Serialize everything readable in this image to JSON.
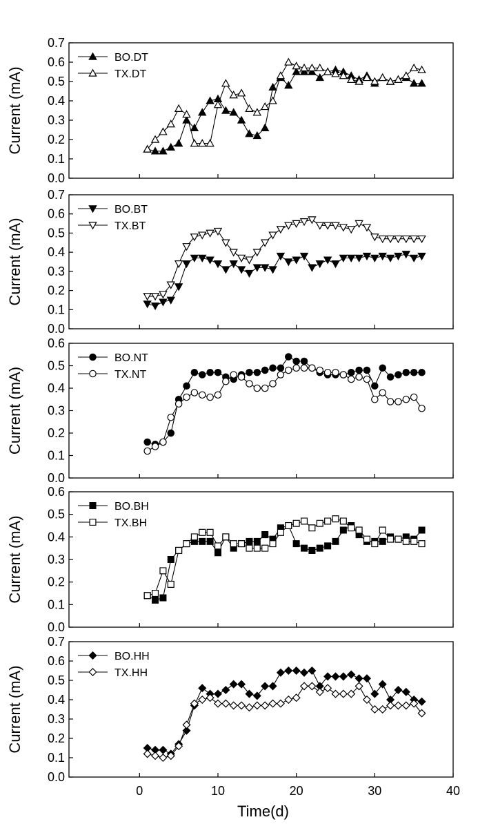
{
  "chart_data": [
    {
      "type": "line",
      "ylabel": "Current (mA)",
      "xlabel": "",
      "xlim": [
        -9,
        40
      ],
      "ylim": [
        0,
        0.7
      ],
      "yticks": [
        0.0,
        0.1,
        0.2,
        0.3,
        0.4,
        0.5,
        0.6,
        0.7
      ],
      "ytick_labels": [
        "0.0",
        "0.1",
        "0.2",
        "0.3",
        "0.4",
        "0.5",
        "0.6",
        "0.7"
      ],
      "legend_position": "top-left",
      "series": [
        {
          "name": "BO.DT",
          "marker": "triangle-up",
          "fill": "filled",
          "x": [
            1,
            2,
            3,
            4,
            5,
            6,
            7,
            8,
            9,
            10,
            11,
            12,
            13,
            14,
            15,
            16,
            17,
            18,
            19,
            20,
            21,
            22,
            23,
            24,
            25,
            26,
            27,
            28,
            29,
            30,
            31,
            32,
            33,
            34,
            35,
            36
          ],
          "y": [
            0.15,
            0.14,
            0.14,
            0.16,
            0.18,
            0.3,
            0.26,
            0.34,
            0.4,
            0.41,
            0.35,
            0.34,
            0.3,
            0.23,
            0.22,
            0.26,
            0.47,
            0.52,
            0.48,
            0.55,
            0.55,
            0.55,
            0.52,
            0.55,
            0.56,
            0.55,
            0.53,
            0.51,
            0.53,
            0.49,
            0.52,
            0.5,
            0.51,
            0.52,
            0.49,
            0.49
          ]
        },
        {
          "name": "TX.DT",
          "marker": "triangle-up",
          "fill": "open",
          "x": [
            1,
            2,
            3,
            4,
            5,
            6,
            7,
            8,
            9,
            10,
            11,
            12,
            13,
            14,
            15,
            16,
            17,
            18,
            19,
            20,
            21,
            22,
            23,
            24,
            25,
            26,
            27,
            28,
            29,
            30,
            31,
            32,
            33,
            34,
            35,
            36
          ],
          "y": [
            0.15,
            0.2,
            0.24,
            0.28,
            0.36,
            0.33,
            0.18,
            0.18,
            0.18,
            0.38,
            0.49,
            0.43,
            0.44,
            0.36,
            0.34,
            0.37,
            0.4,
            0.53,
            0.6,
            0.58,
            0.57,
            0.57,
            0.57,
            0.55,
            0.54,
            0.53,
            0.51,
            0.5,
            0.52,
            0.5,
            0.52,
            0.5,
            0.51,
            0.53,
            0.57,
            0.56
          ]
        }
      ]
    },
    {
      "type": "line",
      "ylabel": "Current (mA)",
      "xlabel": "",
      "xlim": [
        -9,
        40
      ],
      "ylim": [
        0,
        0.7
      ],
      "yticks": [
        0.0,
        0.1,
        0.2,
        0.3,
        0.4,
        0.5,
        0.6,
        0.7
      ],
      "ytick_labels": [
        "0.0",
        "0.1",
        "0.2",
        "0.3",
        "0.4",
        "0.5",
        "0.6",
        "0.7"
      ],
      "legend_position": "top-left",
      "series": [
        {
          "name": "BO.BT",
          "marker": "triangle-down",
          "fill": "filled",
          "x": [
            1,
            2,
            3,
            4,
            5,
            6,
            7,
            8,
            9,
            10,
            11,
            12,
            13,
            14,
            15,
            16,
            17,
            18,
            19,
            20,
            21,
            22,
            23,
            24,
            25,
            26,
            27,
            28,
            29,
            30,
            31,
            32,
            33,
            34,
            35,
            36
          ],
          "y": [
            0.13,
            0.12,
            0.14,
            0.15,
            0.22,
            0.34,
            0.37,
            0.37,
            0.36,
            0.34,
            0.31,
            0.34,
            0.31,
            0.29,
            0.32,
            0.32,
            0.31,
            0.38,
            0.35,
            0.36,
            0.38,
            0.32,
            0.34,
            0.36,
            0.34,
            0.37,
            0.37,
            0.37,
            0.38,
            0.37,
            0.38,
            0.37,
            0.38,
            0.39,
            0.37,
            0.38
          ]
        },
        {
          "name": "TX.BT",
          "marker": "triangle-down",
          "fill": "open",
          "x": [
            1,
            2,
            3,
            4,
            5,
            6,
            7,
            8,
            9,
            10,
            11,
            12,
            13,
            14,
            15,
            16,
            17,
            18,
            19,
            20,
            21,
            22,
            23,
            24,
            25,
            26,
            27,
            28,
            29,
            30,
            31,
            32,
            33,
            34,
            35,
            36
          ],
          "y": [
            0.17,
            0.17,
            0.18,
            0.23,
            0.34,
            0.43,
            0.48,
            0.49,
            0.5,
            0.51,
            0.45,
            0.4,
            0.37,
            0.36,
            0.4,
            0.45,
            0.49,
            0.52,
            0.54,
            0.55,
            0.56,
            0.57,
            0.54,
            0.54,
            0.54,
            0.53,
            0.52,
            0.55,
            0.53,
            0.48,
            0.47,
            0.47,
            0.47,
            0.47,
            0.47,
            0.47
          ]
        }
      ]
    },
    {
      "type": "line",
      "ylabel": "Current (mA)",
      "xlabel": "",
      "xlim": [
        -9,
        40
      ],
      "ylim": [
        0,
        0.6
      ],
      "yticks": [
        0.0,
        0.1,
        0.2,
        0.3,
        0.4,
        0.5,
        0.6
      ],
      "ytick_labels": [
        "0.0",
        "0.1",
        "0.2",
        "0.3",
        "0.4",
        "0.5",
        "0.6"
      ],
      "legend_position": "top-left",
      "series": [
        {
          "name": "BO.NT",
          "marker": "circle",
          "fill": "filled",
          "x": [
            1,
            2,
            3,
            4,
            5,
            6,
            7,
            8,
            9,
            10,
            11,
            12,
            13,
            14,
            15,
            16,
            17,
            18,
            19,
            20,
            21,
            22,
            23,
            24,
            25,
            26,
            27,
            28,
            29,
            30,
            31,
            32,
            33,
            34,
            35,
            36
          ],
          "y": [
            0.16,
            0.15,
            0.16,
            0.2,
            0.35,
            0.41,
            0.47,
            0.46,
            0.47,
            0.47,
            0.45,
            0.44,
            0.46,
            0.47,
            0.47,
            0.48,
            0.49,
            0.49,
            0.54,
            0.52,
            0.52,
            0.49,
            0.47,
            0.46,
            0.46,
            0.46,
            0.47,
            0.48,
            0.48,
            0.41,
            0.49,
            0.45,
            0.46,
            0.47,
            0.47,
            0.47
          ]
        },
        {
          "name": "TX.NT",
          "marker": "circle",
          "fill": "open",
          "x": [
            1,
            2,
            3,
            4,
            5,
            6,
            7,
            8,
            9,
            10,
            11,
            12,
            13,
            14,
            15,
            16,
            17,
            18,
            19,
            20,
            21,
            22,
            23,
            24,
            25,
            26,
            27,
            28,
            29,
            30,
            31,
            32,
            33,
            34,
            35,
            36
          ],
          "y": [
            0.12,
            0.14,
            0.16,
            0.27,
            0.33,
            0.36,
            0.38,
            0.37,
            0.36,
            0.37,
            0.43,
            0.46,
            0.45,
            0.42,
            0.4,
            0.4,
            0.42,
            0.46,
            0.48,
            0.49,
            0.49,
            0.49,
            0.48,
            0.47,
            0.47,
            0.46,
            0.44,
            0.45,
            0.44,
            0.35,
            0.38,
            0.34,
            0.34,
            0.35,
            0.36,
            0.31
          ]
        }
      ]
    },
    {
      "type": "line",
      "ylabel": "Current (mA)",
      "xlabel": "",
      "xlim": [
        -9,
        40
      ],
      "ylim": [
        0,
        0.6
      ],
      "yticks": [
        0.0,
        0.1,
        0.2,
        0.3,
        0.4,
        0.5,
        0.6
      ],
      "ytick_labels": [
        "0.0",
        "0.1",
        "0.2",
        "0.3",
        "0.4",
        "0.5",
        "0.6"
      ],
      "legend_position": "top-left",
      "series": [
        {
          "name": "BO.BH",
          "marker": "square",
          "fill": "filled",
          "x": [
            1,
            2,
            3,
            4,
            5,
            6,
            7,
            8,
            9,
            10,
            11,
            12,
            13,
            14,
            15,
            16,
            17,
            18,
            19,
            20,
            21,
            22,
            23,
            24,
            25,
            26,
            27,
            28,
            29,
            30,
            31,
            32,
            33,
            34,
            35,
            36
          ],
          "y": [
            0.14,
            0.12,
            0.13,
            0.3,
            0.34,
            0.37,
            0.38,
            0.38,
            0.38,
            0.33,
            0.4,
            0.35,
            0.37,
            0.38,
            0.38,
            0.41,
            0.39,
            0.44,
            0.45,
            0.37,
            0.35,
            0.34,
            0.35,
            0.36,
            0.38,
            0.43,
            0.45,
            0.41,
            0.38,
            0.38,
            0.38,
            0.4,
            0.39,
            0.4,
            0.39,
            0.43
          ]
        },
        {
          "name": "TX.BH",
          "marker": "square",
          "fill": "open",
          "x": [
            1,
            2,
            3,
            4,
            5,
            6,
            7,
            8,
            9,
            10,
            11,
            12,
            13,
            14,
            15,
            16,
            17,
            18,
            19,
            20,
            21,
            22,
            23,
            24,
            25,
            26,
            27,
            28,
            29,
            30,
            31,
            32,
            33,
            34,
            35,
            36
          ],
          "y": [
            0.14,
            0.15,
            0.25,
            0.19,
            0.34,
            0.37,
            0.4,
            0.42,
            0.42,
            0.36,
            0.4,
            0.37,
            0.37,
            0.35,
            0.35,
            0.35,
            0.37,
            0.42,
            0.45,
            0.46,
            0.47,
            0.44,
            0.46,
            0.47,
            0.48,
            0.47,
            0.44,
            0.43,
            0.39,
            0.37,
            0.43,
            0.39,
            0.39,
            0.38,
            0.38,
            0.37
          ]
        }
      ]
    },
    {
      "type": "line",
      "ylabel": "Current (mA)",
      "xlabel": "Time(d)",
      "xlim": [
        -9,
        40
      ],
      "ylim": [
        0,
        0.7
      ],
      "yticks": [
        0.0,
        0.1,
        0.2,
        0.3,
        0.4,
        0.5,
        0.6,
        0.7
      ],
      "ytick_labels": [
        "0.0",
        "0.1",
        "0.2",
        "0.3",
        "0.4",
        "0.5",
        "0.6",
        "0.7"
      ],
      "xticks": [
        0,
        10,
        20,
        30,
        40
      ],
      "xtick_labels": [
        "0",
        "10",
        "20",
        "30",
        "40"
      ],
      "legend_position": "top-left",
      "series": [
        {
          "name": "BO.HH",
          "marker": "diamond",
          "fill": "filled",
          "x": [
            1,
            2,
            3,
            4,
            5,
            6,
            7,
            8,
            9,
            10,
            11,
            12,
            13,
            14,
            15,
            16,
            17,
            18,
            19,
            20,
            21,
            22,
            23,
            24,
            25,
            26,
            27,
            28,
            29,
            30,
            31,
            32,
            33,
            34,
            35,
            36
          ],
          "y": [
            0.15,
            0.14,
            0.14,
            0.12,
            0.17,
            0.24,
            0.37,
            0.46,
            0.43,
            0.43,
            0.45,
            0.48,
            0.48,
            0.43,
            0.42,
            0.47,
            0.47,
            0.54,
            0.55,
            0.55,
            0.54,
            0.55,
            0.47,
            0.52,
            0.52,
            0.52,
            0.53,
            0.51,
            0.51,
            0.43,
            0.48,
            0.4,
            0.45,
            0.44,
            0.4,
            0.39
          ]
        },
        {
          "name": "TX.HH",
          "marker": "diamond",
          "fill": "open",
          "x": [
            1,
            2,
            3,
            4,
            5,
            6,
            7,
            8,
            9,
            10,
            11,
            12,
            13,
            14,
            15,
            16,
            17,
            18,
            19,
            20,
            21,
            22,
            23,
            24,
            25,
            26,
            27,
            28,
            29,
            30,
            31,
            32,
            33,
            34,
            35,
            36
          ],
          "y": [
            0.12,
            0.11,
            0.1,
            0.11,
            0.16,
            0.27,
            0.38,
            0.4,
            0.41,
            0.38,
            0.38,
            0.37,
            0.37,
            0.36,
            0.37,
            0.37,
            0.38,
            0.38,
            0.4,
            0.41,
            0.47,
            0.47,
            0.44,
            0.46,
            0.43,
            0.43,
            0.43,
            0.47,
            0.4,
            0.35,
            0.35,
            0.37,
            0.37,
            0.37,
            0.38,
            0.33
          ]
        }
      ]
    }
  ]
}
